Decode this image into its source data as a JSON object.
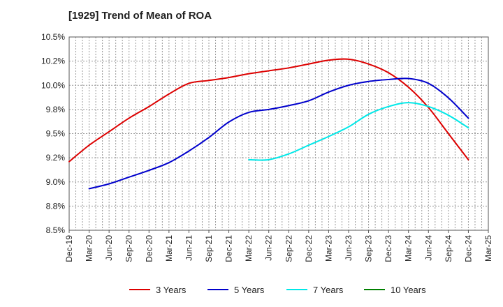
{
  "chart_data": {
    "type": "line",
    "title": "[1929]  Trend of Mean of ROA",
    "xlabel": "",
    "ylabel": "",
    "ylim": [
      8.5,
      10.5
    ],
    "y_ticks": [
      "8.5%",
      "8.8%",
      "9.0%",
      "9.2%",
      "9.5%",
      "9.8%",
      "10.0%",
      "10.2%",
      "10.5%"
    ],
    "x_ticks": [
      "Dec-19",
      "Mar-20",
      "Jun-20",
      "Sep-20",
      "Dec-20",
      "Mar-21",
      "Jun-21",
      "Sep-21",
      "Dec-21",
      "Mar-22",
      "Jun-22",
      "Sep-22",
      "Dec-22",
      "Mar-23",
      "Jun-23",
      "Sep-23",
      "Dec-23",
      "Mar-24",
      "Jun-24",
      "Sep-24",
      "Dec-24",
      "Mar-25"
    ],
    "grid": true,
    "legend_position": "bottom",
    "series": [
      {
        "name": "3 Years",
        "color": "#dd0000",
        "x": [
          "Dec-19",
          "Mar-20",
          "Jun-20",
          "Sep-20",
          "Dec-20",
          "Mar-21",
          "Jun-21",
          "Sep-21",
          "Dec-21",
          "Mar-22",
          "Jun-22",
          "Sep-22",
          "Dec-22",
          "Mar-23",
          "Jun-23",
          "Sep-23",
          "Dec-23",
          "Mar-24",
          "Jun-24",
          "Sep-24",
          "Dec-24"
        ],
        "values": [
          9.21,
          9.38,
          9.52,
          9.66,
          9.78,
          9.91,
          10.02,
          10.05,
          10.08,
          10.12,
          10.15,
          10.18,
          10.22,
          10.26,
          10.27,
          10.22,
          10.13,
          9.98,
          9.77,
          9.5,
          9.23
        ]
      },
      {
        "name": "5 Years",
        "color": "#0000cc",
        "x": [
          "Mar-20",
          "Jun-20",
          "Sep-20",
          "Dec-20",
          "Mar-21",
          "Jun-21",
          "Sep-21",
          "Dec-21",
          "Mar-22",
          "Jun-22",
          "Sep-22",
          "Dec-22",
          "Mar-23",
          "Jun-23",
          "Sep-23",
          "Dec-23",
          "Mar-24",
          "Jun-24",
          "Sep-24",
          "Dec-24"
        ],
        "values": [
          8.93,
          8.98,
          9.05,
          9.12,
          9.2,
          9.32,
          9.46,
          9.62,
          9.72,
          9.75,
          9.79,
          9.84,
          9.93,
          10.0,
          10.04,
          10.06,
          10.07,
          10.02,
          9.87,
          9.66
        ]
      },
      {
        "name": "7 Years",
        "color": "#00e8e8",
        "x": [
          "Mar-22",
          "Jun-22",
          "Sep-22",
          "Dec-22",
          "Mar-23",
          "Jun-23",
          "Sep-23",
          "Dec-23",
          "Mar-24",
          "Jun-24",
          "Sep-24",
          "Dec-24"
        ],
        "values": [
          9.23,
          9.23,
          9.29,
          9.38,
          9.47,
          9.57,
          9.7,
          9.78,
          9.82,
          9.78,
          9.69,
          9.56
        ]
      },
      {
        "name": "10 Years",
        "color": "#008000",
        "x": [],
        "values": []
      }
    ]
  }
}
